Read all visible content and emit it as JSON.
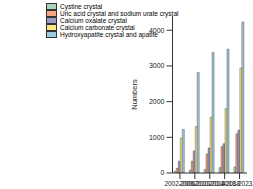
{
  "chart_data": {
    "type": "bar",
    "categories": [
      "2002-2006",
      "2006-2010",
      "2010-2014",
      "2014-2018",
      "2018-2023.2"
    ],
    "series": [
      {
        "name": "Cystine crystal",
        "color": "#a6d8c0",
        "values": [
          50,
          80,
          100,
          150,
          170
        ]
      },
      {
        "name": "Uric acid crystal and sodium urate crystal",
        "color": "#f4a582",
        "values": [
          130,
          330,
          530,
          740,
          1100
        ]
      },
      {
        "name": "Calcium oxalate crystal",
        "color": "#9e9ac8",
        "values": [
          330,
          620,
          700,
          820,
          1200
        ]
      },
      {
        "name": "Calcium carbonate crystal",
        "color": "#ffe680",
        "values": [
          980,
          1300,
          1560,
          1800,
          2940
        ]
      },
      {
        "name": "Hydroxyapatite crystal and apatite",
        "color": "#9ecae1",
        "values": [
          1220,
          2820,
          3380,
          3470,
          4230
        ]
      }
    ],
    "y_label": "Numbers",
    "ylim": [
      0,
      4400
    ],
    "yticks": [
      0,
      1000,
      2000,
      3000,
      4000
    ],
    "grid": false,
    "legend": "upper left"
  }
}
